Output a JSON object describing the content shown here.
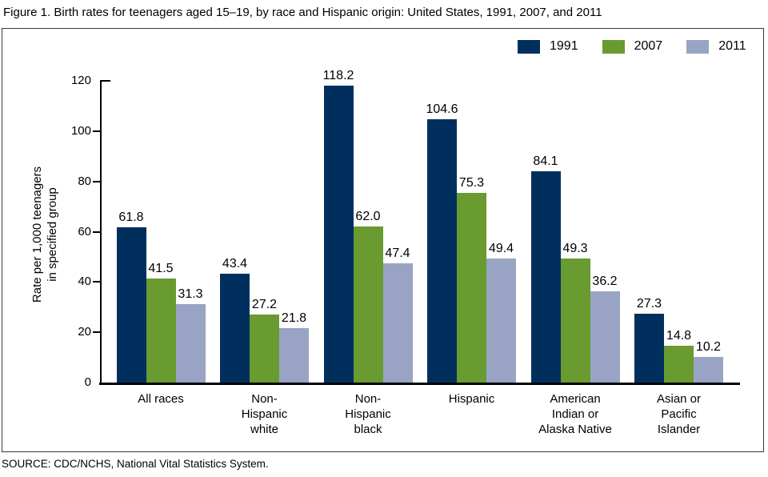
{
  "title": "Figure 1. Birth rates for teenagers aged 15–19, by race and Hispanic origin: United States, 1991, 2007, and 2011",
  "source": "SOURCE: CDC/NCHS, National Vital Statistics System.",
  "chart_data": {
    "type": "bar",
    "title": "Birth rates for teenagers aged 15–19, by race and Hispanic origin: United States, 1991, 2007, and 2011",
    "ylabel": "Rate per 1,000 teenagers in specified group",
    "ylabel_lines": [
      "Rate per 1,000 teenagers",
      "in specified group"
    ],
    "ylim": [
      0,
      120
    ],
    "yticks": [
      0,
      20,
      40,
      60,
      80,
      100,
      120
    ],
    "grid": false,
    "legend_position": "top-right",
    "value_label_decimals": 1,
    "categories": [
      {
        "label": "All races",
        "lines": [
          "All races"
        ]
      },
      {
        "label": "Non-Hispanic white",
        "lines": [
          "Non-",
          "Hispanic",
          "white"
        ]
      },
      {
        "label": "Non-Hispanic black",
        "lines": [
          "Non-",
          "Hispanic",
          "black"
        ]
      },
      {
        "label": "Hispanic",
        "lines": [
          "Hispanic"
        ]
      },
      {
        "label": "American Indian or Alaska Native",
        "lines": [
          "American",
          "Indian or",
          "Alaska Native"
        ]
      },
      {
        "label": "Asian or Pacific Islander",
        "lines": [
          "Asian or",
          "Pacific",
          "Islander"
        ]
      }
    ],
    "series": [
      {
        "name": "1991",
        "color": "#002f5e",
        "values": [
          61.8,
          43.4,
          118.2,
          104.6,
          84.1,
          27.3
        ]
      },
      {
        "name": "2007",
        "color": "#699b31",
        "values": [
          41.5,
          27.2,
          62.0,
          75.3,
          49.3,
          14.8
        ]
      },
      {
        "name": "2011",
        "color": "#99a4c5",
        "values": [
          31.3,
          21.8,
          47.4,
          49.4,
          36.2,
          10.2
        ]
      }
    ]
  }
}
